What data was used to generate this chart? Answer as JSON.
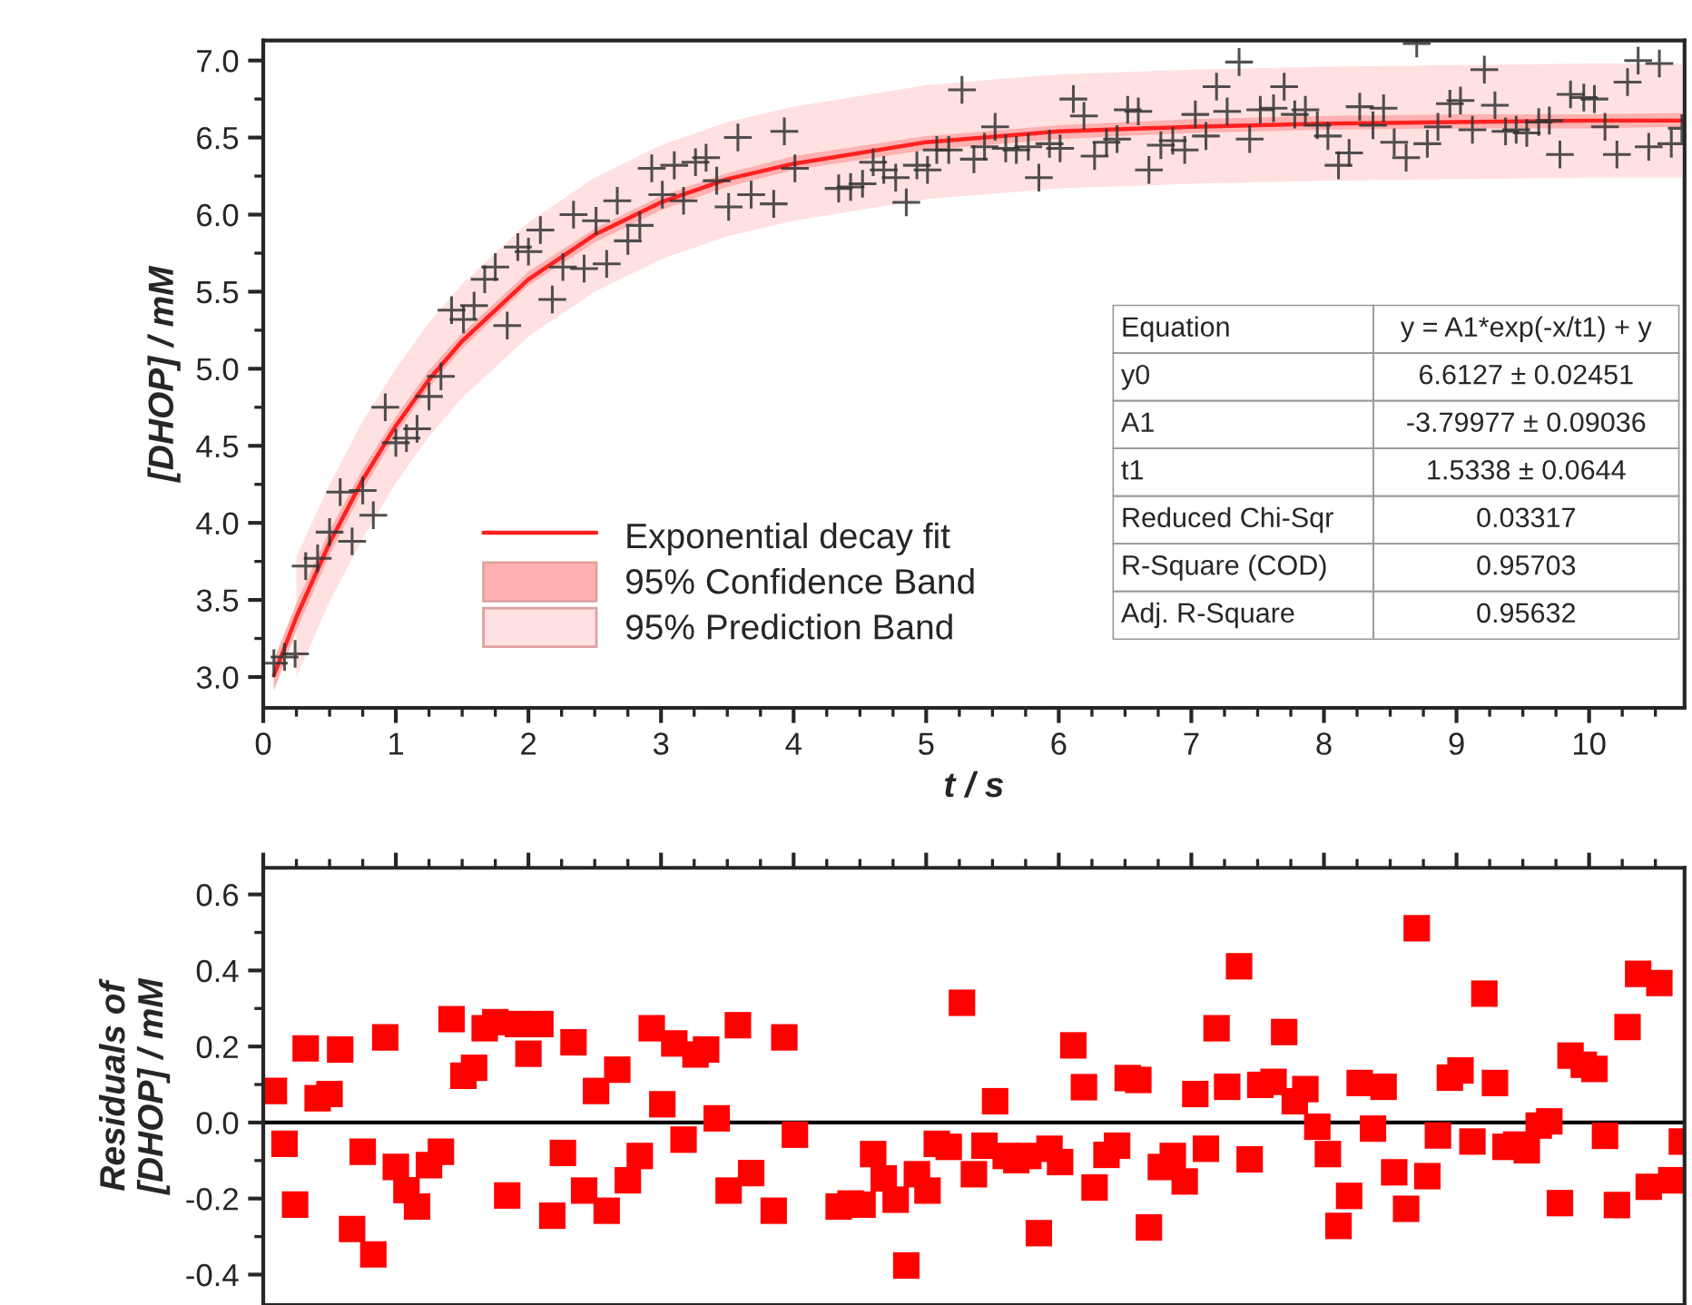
{
  "chart_data": [
    {
      "type": "scatter",
      "xlabel": "t / s",
      "ylabel": "[DHOP] / mM",
      "xlim": [
        0,
        10.72
      ],
      "ylim": [
        2.8,
        7.13
      ],
      "xticks": [
        0,
        1,
        2,
        3,
        4,
        5,
        6,
        7,
        8,
        9,
        10
      ],
      "yticks": [
        {
          "value": 3,
          "label": "3.0"
        },
        {
          "value": 3.5,
          "label": "3.5"
        },
        {
          "value": 4,
          "label": "4.0"
        },
        {
          "value": 4.5,
          "label": "4.5"
        },
        {
          "value": 5,
          "label": "5.0"
        },
        {
          "value": 5.5,
          "label": "5.5"
        },
        {
          "value": 6,
          "label": "6.0"
        },
        {
          "value": 6.5,
          "label": "6.5"
        },
        {
          "value": 7,
          "label": "7.0"
        }
      ],
      "legend": "lower left",
      "grid": false,
      "annotations": [
        "Equation",
        "y = A1*exp(-x/t1) + y",
        "y0",
        "6.6127 ± 0.02451",
        "A1",
        "-3.79977 ± 0.09036",
        "t1",
        "1.5338 ± 0.0644",
        "Reduced Chi-Sqr",
        "0.03317",
        "R-Square (COD)",
        "0.95703",
        "Adj. R-Square",
        "0.95632"
      ],
      "series": [
        {
          "type": "line",
          "name": "95% Prediction Band",
          "color": "#ffe1e1",
          "x": [
            0.25,
            0.5,
            0.75,
            1,
            1.25,
            1.5,
            2,
            2.5,
            3,
            3.5,
            4,
            5,
            6,
            7,
            8,
            9,
            10,
            10.7
          ],
          "values": [
            null,
            null,
            null,
            null,
            null,
            null,
            null,
            null,
            null,
            null,
            null,
            null,
            null,
            null,
            null,
            null,
            null,
            null
          ],
          "lower": [
            3.0,
            3.49,
            3.9,
            4.26,
            4.56,
            4.81,
            5.21,
            5.5,
            5.71,
            5.86,
            5.96,
            6.1,
            6.17,
            6.2,
            6.22,
            6.23,
            6.24,
            6.24
          ],
          "upper": [
            3.78,
            4.25,
            4.66,
            5.0,
            5.3,
            5.55,
            5.95,
            6.24,
            6.45,
            6.6,
            6.7,
            6.84,
            6.91,
            6.94,
            6.96,
            6.97,
            6.98,
            6.98
          ]
        },
        {
          "type": "line",
          "name": "95% Confidence Band",
          "color": "#ffb0b0",
          "x": [
            0.08,
            0.25,
            0.5,
            0.75,
            1,
            1.25,
            1.5,
            2,
            2.5,
            3,
            3.5,
            4,
            5,
            6,
            7,
            8,
            9,
            10,
            10.7
          ],
          "values": [
            null,
            null,
            null,
            null,
            null,
            null,
            null,
            null,
            null,
            null,
            null,
            null,
            null,
            null,
            null,
            null,
            null,
            null,
            null
          ],
          "lower": [
            2.91,
            3.3,
            3.79,
            4.21,
            4.57,
            4.88,
            5.13,
            5.54,
            5.82,
            6.03,
            6.18,
            6.29,
            6.42,
            6.49,
            6.53,
            6.55,
            6.56,
            6.56,
            6.57
          ],
          "upper": [
            3.11,
            3.48,
            3.95,
            4.35,
            4.69,
            4.99,
            5.23,
            5.63,
            5.91,
            6.12,
            6.27,
            6.38,
            6.51,
            6.58,
            6.62,
            6.64,
            6.65,
            6.65,
            6.66
          ]
        },
        {
          "type": "line",
          "name": "Exponential decay fit",
          "color": "#ff2020",
          "x": [
            0.08,
            0.25,
            0.5,
            0.75,
            1,
            1.25,
            1.5,
            2,
            2.5,
            3,
            3.5,
            4,
            5,
            6,
            7,
            8,
            9,
            10,
            10.7
          ],
          "values": [
            3.01,
            3.39,
            3.87,
            4.28,
            4.63,
            4.93,
            5.18,
            5.58,
            5.87,
            6.08,
            6.23,
            6.33,
            6.47,
            6.54,
            6.57,
            6.59,
            6.6,
            6.61,
            6.61
          ]
        },
        {
          "type": "scatter",
          "marker": "cross",
          "color": "#333333",
          "x": [
            0.08,
            0.16,
            0.24,
            0.32,
            0.41,
            0.5,
            0.58,
            0.67,
            0.75,
            0.83,
            0.92,
            1.0,
            1.08,
            1.16,
            1.25,
            1.34,
            1.42,
            1.51,
            1.59,
            1.67,
            1.75,
            1.84,
            1.92,
            2.0,
            2.09,
            2.18,
            2.26,
            2.34,
            2.42,
            2.51,
            2.59,
            2.67,
            2.75,
            2.84,
            2.93,
            3.01,
            3.1,
            3.17,
            3.26,
            3.34,
            3.42,
            3.51,
            3.58,
            3.68,
            3.85,
            3.93,
            4.01,
            4.34,
            4.43,
            4.52,
            4.6,
            4.68,
            4.77,
            4.85,
            4.93,
            5.01,
            5.08,
            5.17,
            5.27,
            5.36,
            5.44,
            5.52,
            5.6,
            5.68,
            5.77,
            5.85,
            5.93,
            6.01,
            6.11,
            6.19,
            6.27,
            6.36,
            6.44,
            6.52,
            6.6,
            6.68,
            6.77,
            6.86,
            6.95,
            7.03,
            7.11,
            7.19,
            7.27,
            7.36,
            7.44,
            7.52,
            7.62,
            7.7,
            7.78,
            7.86,
            7.95,
            8.03,
            8.11,
            8.19,
            8.27,
            8.37,
            8.45,
            8.53,
            8.62,
            8.7,
            8.78,
            8.86,
            8.95,
            9.03,
            9.12,
            9.21,
            9.29,
            9.37,
            9.45,
            9.53,
            9.62,
            9.7,
            9.78,
            9.86,
            9.96,
            10.04,
            10.12,
            10.21,
            10.29,
            10.37,
            10.45,
            10.53,
            10.62,
            10.7
          ],
          "values": [
            3.09,
            3.13,
            3.15,
            3.72,
            3.77,
            3.94,
            4.2,
            3.88,
            4.21,
            4.05,
            4.75,
            4.52,
            4.55,
            4.61,
            4.82,
            4.95,
            5.38,
            5.32,
            5.41,
            5.58,
            5.66,
            5.28,
            5.79,
            5.76,
            5.9,
            5.45,
            5.66,
            6.0,
            5.65,
            5.96,
            5.68,
            6.09,
            5.83,
            5.93,
            6.3,
            6.13,
            6.32,
            6.09,
            6.34,
            6.37,
            6.22,
            6.05,
            6.5,
            6.13,
            6.07,
            6.54,
            6.3,
            6.17,
            6.18,
            6.2,
            6.34,
            6.29,
            6.24,
            6.08,
            6.32,
            6.29,
            6.42,
            6.42,
            6.81,
            6.36,
            6.44,
            6.57,
            6.43,
            6.42,
            6.44,
            6.24,
            6.46,
            6.43,
            6.75,
            6.64,
            6.38,
            6.47,
            6.49,
            6.68,
            6.67,
            6.29,
            6.45,
            6.48,
            6.42,
            6.65,
            6.51,
            6.83,
            6.67,
            6.99,
            6.49,
            6.68,
            6.69,
            6.83,
            6.65,
            6.68,
            6.58,
            6.51,
            6.32,
            6.4,
            6.7,
            6.58,
            6.69,
            6.47,
            6.37,
            7.11,
            6.46,
            6.57,
            6.72,
            6.74,
            6.55,
            6.94,
            6.71,
            6.54,
            6.55,
            6.53,
            6.6,
            6.61,
            6.39,
            6.78,
            6.76,
            6.75,
            6.57,
            6.39,
            6.86,
            7.0,
            6.44,
            6.98,
            6.46,
            6.56
          ]
        }
      ]
    },
    {
      "type": "scatter",
      "ylabel": "Residuals of\n[DHOP] / mM",
      "xlim": [
        0,
        10.72
      ],
      "ylim": [
        -0.48,
        0.67
      ],
      "xticks": [
        {
          "value": 0,
          "label": null
        },
        {
          "value": 1,
          "label": null
        },
        {
          "value": 2,
          "label": null
        },
        {
          "value": 3,
          "label": null
        },
        {
          "value": 4,
          "label": null
        },
        {
          "value": 5,
          "label": null
        },
        {
          "value": 6,
          "label": null
        },
        {
          "value": 7,
          "label": null
        },
        {
          "value": 8,
          "label": null
        },
        {
          "value": 9,
          "label": null
        },
        {
          "value": 10,
          "label": null
        }
      ],
      "yticks": [
        {
          "value": -0.4,
          "label": "-0.4"
        },
        {
          "value": -0.2,
          "label": "-0.2"
        },
        {
          "value": 0,
          "label": "0.0"
        },
        {
          "value": 0.2,
          "label": "0.2"
        },
        {
          "value": 0.4,
          "label": "0.4"
        },
        {
          "value": 0.6,
          "label": "0.6"
        }
      ],
      "tick_labels": "y",
      "marker": "square",
      "grid": false,
      "color": "#ff0000",
      "ref_lines": [
        {
          "axis": "y",
          "value": 0,
          "color": "#000000"
        }
      ],
      "x": [
        0.08,
        0.16,
        0.24,
        0.32,
        0.41,
        0.5,
        0.58,
        0.67,
        0.75,
        0.83,
        0.92,
        1.0,
        1.08,
        1.16,
        1.25,
        1.34,
        1.42,
        1.51,
        1.59,
        1.67,
        1.75,
        1.84,
        1.92,
        2.0,
        2.09,
        2.18,
        2.26,
        2.34,
        2.42,
        2.51,
        2.59,
        2.67,
        2.75,
        2.84,
        2.93,
        3.01,
        3.1,
        3.17,
        3.26,
        3.34,
        3.42,
        3.51,
        3.58,
        3.68,
        3.85,
        3.93,
        4.01,
        4.34,
        4.43,
        4.52,
        4.6,
        4.68,
        4.77,
        4.85,
        4.93,
        5.01,
        5.08,
        5.17,
        5.27,
        5.36,
        5.44,
        5.52,
        5.6,
        5.68,
        5.77,
        5.85,
        5.93,
        6.01,
        6.11,
        6.19,
        6.27,
        6.36,
        6.44,
        6.52,
        6.6,
        6.68,
        6.77,
        6.86,
        6.95,
        7.03,
        7.11,
        7.19,
        7.27,
        7.36,
        7.44,
        7.52,
        7.62,
        7.7,
        7.78,
        7.86,
        7.95,
        8.03,
        8.11,
        8.19,
        8.27,
        8.37,
        8.45,
        8.53,
        8.62,
        8.7,
        8.78,
        8.86,
        8.95,
        9.03,
        9.12,
        9.21,
        9.29,
        9.37,
        9.45,
        9.53,
        9.62,
        9.7,
        9.78,
        9.86,
        9.96,
        10.04,
        10.12,
        10.21,
        10.29,
        10.37,
        10.45,
        10.53,
        10.62,
        10.7
      ],
      "values": [
        0.083,
        -0.056,
        -0.216,
        0.195,
        0.064,
        0.075,
        0.192,
        -0.28,
        -0.077,
        -0.347,
        0.224,
        -0.117,
        -0.178,
        -0.221,
        -0.112,
        -0.077,
        0.272,
        0.123,
        0.144,
        0.248,
        0.264,
        -0.192,
        0.259,
        0.181,
        0.259,
        -0.245,
        -0.08,
        0.211,
        -0.179,
        0.083,
        -0.232,
        0.139,
        -0.152,
        -0.088,
        0.248,
        0.048,
        0.208,
        -0.045,
        0.179,
        0.192,
        0.011,
        -0.179,
        0.256,
        -0.133,
        -0.232,
        0.224,
        -0.032,
        -0.221,
        -0.213,
        -0.216,
        -0.083,
        -0.147,
        -0.203,
        -0.376,
        -0.136,
        -0.179,
        -0.056,
        -0.064,
        0.315,
        -0.136,
        -0.061,
        0.056,
        -0.088,
        -0.099,
        -0.088,
        -0.291,
        -0.069,
        -0.104,
        0.203,
        0.093,
        -0.171,
        -0.085,
        -0.061,
        0.117,
        0.112,
        -0.276,
        -0.117,
        -0.088,
        -0.155,
        0.075,
        -0.069,
        0.248,
        0.094,
        0.411,
        -0.097,
        0.099,
        0.107,
        0.238,
        0.056,
        0.088,
        -0.011,
        -0.083,
        -0.272,
        -0.193,
        0.104,
        -0.016,
        0.094,
        -0.131,
        -0.227,
        0.511,
        -0.141,
        -0.034,
        0.118,
        0.137,
        -0.05,
        0.339,
        0.104,
        -0.064,
        -0.058,
        -0.073,
        -0.008,
        0.003,
        -0.212,
        0.176,
        0.152,
        0.141,
        -0.035,
        -0.217,
        0.251,
        0.391,
        -0.169,
        0.367,
        -0.152,
        -0.05
      ]
    }
  ]
}
